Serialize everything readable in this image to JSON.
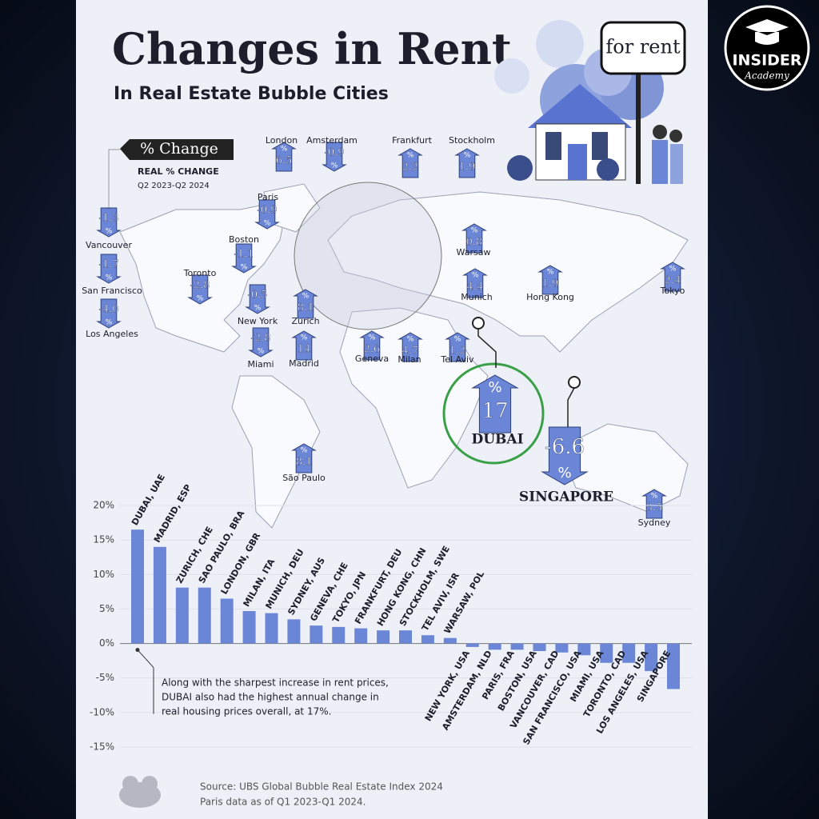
{
  "header": {
    "title": "Changes in Rent",
    "subtitle": "In Real Estate Bubble Cities",
    "legend_label": "% Change",
    "metric": "REAL % CHANGE",
    "period": "Q2 2023-Q2 2024",
    "sign": "for rent"
  },
  "brand": {
    "name": "INSIDER",
    "tagline": "Academy"
  },
  "map": {
    "unit": "%",
    "markers": [
      {
        "city": "London",
        "value": 6.5
      },
      {
        "city": "Amsterdam",
        "value": -0.9
      },
      {
        "city": "Frankfurt",
        "value": 2.2
      },
      {
        "city": "Stockholm",
        "value": 1.9
      },
      {
        "city": "Paris",
        "value": -0.9
      },
      {
        "city": "Vancouver",
        "value": -1.3
      },
      {
        "city": "San Francisco",
        "value": -1.7
      },
      {
        "city": "Los Angeles",
        "value": -4.0,
        "label": "-4.0"
      },
      {
        "city": "Boston",
        "value": -1.1
      },
      {
        "city": "Toronto",
        "value": -2.8
      },
      {
        "city": "New York",
        "value": -0.5
      },
      {
        "city": "Miami",
        "value": -2.8
      },
      {
        "city": "Zurich",
        "value": 8.1
      },
      {
        "city": "Madrid",
        "value": 14
      },
      {
        "city": "Geneva",
        "value": 2.6
      },
      {
        "city": "Milan",
        "value": 4.7
      },
      {
        "city": "Tel Aviv",
        "value": 1.2
      },
      {
        "city": "Munich",
        "value": 4.4
      },
      {
        "city": "Warsaw",
        "value": 0.8
      },
      {
        "city": "Hong Kong",
        "value": 1.9
      },
      {
        "city": "Tokyo",
        "value": 2.4
      },
      {
        "city": "DUBAI",
        "value": 17
      },
      {
        "city": "SINGAPORE",
        "value": -6.6
      },
      {
        "city": "Sydney",
        "value": 3.5
      },
      {
        "city": "São Paulo",
        "value": 8.1
      }
    ]
  },
  "chart_data": {
    "type": "bar",
    "categories": [
      "DUBAI, UAE",
      "MADRID, ESP",
      "ZURICH, CHE",
      "SAO PAULO, BRA",
      "LONDON, GBR",
      "MILAN, ITA",
      "MUNICH, DEU",
      "SYDNEY, AUS",
      "GENEVA, CHE",
      "TOKYO, JPN",
      "FRANKFURT, DEU",
      "HONG KONG, CHN",
      "STOCKHOLM, SWE",
      "TEL AVIV, ISR",
      "WARSAW, POL",
      "NEW YORK, USA",
      "AMSTERDAM, NLD",
      "PARIS, FRA",
      "BOSTON, USA",
      "VANCOUVER, CAD",
      "SAN FRANCISCO, USA",
      "MIAMI, USA",
      "TORONTO, CAD",
      "LOS ANGELES, USA",
      "SINGAPORE"
    ],
    "values": [
      16.5,
      14,
      8.1,
      8.1,
      6.5,
      4.7,
      4.4,
      3.5,
      2.6,
      2.4,
      2.2,
      1.9,
      1.9,
      1.2,
      0.8,
      -0.5,
      -0.9,
      -0.9,
      -1.1,
      -1.3,
      -1.7,
      -2.8,
      -2.8,
      -4.0,
      -6.6
    ],
    "color": "#6b86d6",
    "ylim": [
      -15,
      20
    ],
    "yticks": [
      {
        "value": -15,
        "label": "-15%"
      },
      {
        "value": -10,
        "label": "-10%"
      },
      {
        "value": -5,
        "label": "-5%"
      },
      {
        "value": 0,
        "label": "0%"
      },
      {
        "value": 5,
        "label": "5%"
      },
      {
        "value": 10,
        "label": "10%"
      },
      {
        "value": 15,
        "label": "15%"
      },
      {
        "value": 20,
        "label": "20%"
      }
    ],
    "grid": true,
    "annotation": [
      "Along with the sharpest increase in rent prices,",
      "DUBAI also had the highest annual change in",
      "real housing prices overall, at 17%."
    ]
  },
  "source": [
    "Source: UBS Global Bubble Real Estate Index 2024",
    "Paris data as of Q1 2023-Q1 2024."
  ]
}
